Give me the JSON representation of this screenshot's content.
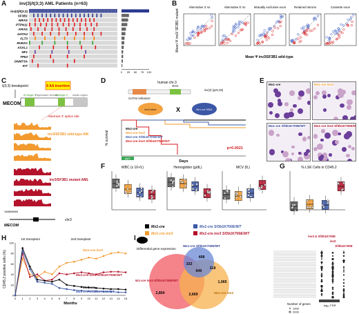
{
  "panelA": {
    "letter": "A",
    "title": "inv(3)/t(3;3) AML Patients (n=63)",
    "genes": [
      "inv(3)/t(3;3)",
      "SF3B1",
      "NRAS",
      "PTPN11",
      "KRAS",
      "GATA2",
      "FLT3",
      "RUNX1",
      "ASXL1",
      "NF1",
      "TP53",
      "DNMT3A",
      "KIT"
    ],
    "axis_label": "% Patients",
    "axis_ticks": [
      "0",
      "25",
      "50",
      "75",
      "100"
    ],
    "pct_values": [
      100,
      27,
      24,
      21,
      16,
      14,
      11,
      10,
      8,
      6,
      6,
      5,
      3
    ]
  },
  "panelB": {
    "letter": "B",
    "ylabel": "Mean Ψ inv3/ SF3B1 mutant",
    "xlabel": "Mean Ψ inv3/SF3B1 wild-type",
    "plots": [
      "Alternative 3' ss",
      "Alternative 5' ss",
      "Mutually exclusive exon",
      "Retained introns",
      "Cassette exon"
    ]
  },
  "panelC": {
    "letter": "C",
    "breakpoint": "t(3;3) breakpoint",
    "insertion": "6 AA insertion",
    "gene": "MECOM",
    "domains": [
      "Zn finger 1",
      "Repression Domain",
      "Zn finger 2",
      "Acidic region"
    ],
    "splice_label": "Aberrant 3' splice site",
    "wt_label": "inv3/SF3B1 wild-type AML",
    "mut_label": "inv3/SF3B1 mutant AML",
    "coord": "168808869",
    "chr": "chr3",
    "track_gene": "MECOM"
  },
  "panelD": {
    "letter": "D",
    "human": "human chr.3",
    "locus": "inv(3) (q21;26)",
    "enhancer": "GATA2 enhancer",
    "evi1": "EVI1",
    "cross": "X",
    "mouse1": "inv3 mice",
    "mouse2": "Mx1-cre Sf3b1",
    "ylabel": "% survival",
    "xlabel": "Days",
    "legend": [
      "Mx1-cre",
      "Mx1-cre inv3",
      "Mx1-cre Sf3b1K700E/WT",
      "Mx1-cre inv3 Sf3b1K700E/WT"
    ],
    "pval": "p=0.0021",
    "treatment": "pIpC"
  },
  "panelE": {
    "letter": "E",
    "labels": [
      "Mx1-cre",
      "Mx1-cre inv3",
      "Mx1-cre Sf3b1K700E/WT",
      "Mx1-cre inv3 Sf3b1K700E/WT"
    ]
  },
  "panelF": {
    "letter": "F",
    "titles": [
      "WBC (x 10⁹/L)",
      "Hemoglobin (g/dL)",
      "MCV (fL)"
    ]
  },
  "panelG": {
    "letter": "G",
    "title": "% LSK Cells in CD45.2"
  },
  "legendFG": {
    "items": [
      "Mx1-cre",
      "Mx1-cre inv3",
      "Mx1-cre Sf3b1K700E/WT",
      "Mx1-cre inv3 Sf3b1K700E/WT"
    ]
  },
  "panelH": {
    "letter": "H",
    "ylabel": "CD45.2 positive cells (%)",
    "xlabel": "Months",
    "first": "1st transplant",
    "second": "2nd transplant",
    "ticks_x": [
      "0",
      "1",
      "2",
      "3",
      "4",
      "5",
      "6",
      "7",
      "8",
      "9",
      "10",
      "11",
      "12",
      "13",
      "14",
      "15"
    ],
    "ticks_y": [
      "0",
      "20",
      "40",
      "60",
      "80",
      "100"
    ],
    "labels": [
      "Mx1-cre inv3",
      "Mx1-cre inv3 Sf3b1K700E/WT",
      "Mx1-cre",
      "Mx1-cre Sf3b1K700E/WT"
    ]
  },
  "panelI": {
    "letter": "I",
    "diff_label": "Differential gene expression",
    "sets": [
      "Mx1-cre Sf3b1K700E/WT",
      "Mx1-cre inv3 Sf3b1K700E/WT",
      "Mx1-cre inv3"
    ],
    "counts": [
      "408",
      "332",
      "318",
      "640",
      "2,854",
      "2,669",
      "1,065"
    ],
    "dot_header": [
      "inv3 & Sf3b1K700E",
      "inv3",
      "Sf3b1K700E"
    ],
    "size_legend": "Number of genes",
    "sizes": [
      "1000",
      "2000"
    ],
    "color_legend": "-log₁₀ FDR"
  }
}
